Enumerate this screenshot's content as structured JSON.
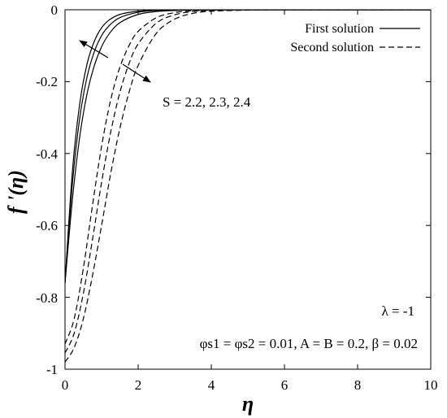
{
  "chart_data": {
    "type": "line",
    "xlabel": "η",
    "ylabel": "f '(η)",
    "xlim": [
      0,
      10
    ],
    "ylim": [
      -1,
      0
    ],
    "x_ticks": [
      "0",
      "2",
      "4",
      "6",
      "8",
      "10"
    ],
    "y_ticks": [
      "0",
      "-0.2",
      "-0.4",
      "-0.6",
      "-0.8",
      "-1"
    ],
    "grid": false,
    "legend_position": "top-right",
    "legend": [
      {
        "label": "First solution",
        "style": "solid"
      },
      {
        "label": "Second solution",
        "style": "dashed"
      }
    ],
    "annotations": {
      "s_label": "S = 2.2, 2.3, 2.4",
      "lambda_label": "λ = -1",
      "params_label": "φs1 = φs2 = 0.01, A = B = 0.2, β = 0.02"
    },
    "series": [
      {
        "group": "First solution",
        "S": 2.2,
        "style": "solid",
        "x": [
          0,
          0.2,
          0.4,
          0.6,
          0.8,
          1.0,
          1.2,
          1.5,
          2.0,
          2.5,
          3.0,
          4.0,
          6.0,
          10.0
        ],
        "y": [
          -0.76,
          -0.452,
          -0.263,
          -0.152,
          -0.088,
          -0.05,
          -0.029,
          -0.013,
          -0.004,
          -0.001,
          0.0,
          0.0,
          0.0,
          0.0
        ]
      },
      {
        "group": "First solution",
        "S": 2.3,
        "style": "solid",
        "x": [
          0,
          0.2,
          0.4,
          0.6,
          0.8,
          1.0,
          1.2,
          1.5,
          2.0,
          2.5,
          3.0,
          4.0,
          6.0,
          10.0
        ],
        "y": [
          -0.76,
          -0.486,
          -0.303,
          -0.188,
          -0.117,
          -0.072,
          -0.045,
          -0.022,
          -0.007,
          -0.002,
          -0.001,
          0.0,
          0.0,
          0.0
        ]
      },
      {
        "group": "First solution",
        "S": 2.4,
        "style": "solid",
        "x": [
          0,
          0.2,
          0.4,
          0.6,
          0.8,
          1.0,
          1.2,
          1.5,
          2.0,
          2.5,
          3.0,
          4.0,
          6.0,
          10.0
        ],
        "y": [
          -0.76,
          -0.53,
          -0.355,
          -0.235,
          -0.156,
          -0.103,
          -0.068,
          -0.036,
          -0.013,
          -0.005,
          -0.002,
          0.0,
          0.0,
          0.0
        ]
      },
      {
        "group": "Second solution",
        "S": 2.2,
        "style": "dashed",
        "x": [
          0,
          0.25,
          0.5,
          0.75,
          1.0,
          1.25,
          1.5,
          1.75,
          2.0,
          2.5,
          3.0,
          3.5,
          4.0,
          5.0,
          6.0,
          10.0
        ],
        "y": [
          -0.93,
          -0.86,
          -0.72,
          -0.545,
          -0.38,
          -0.25,
          -0.16,
          -0.1,
          -0.06,
          -0.022,
          -0.008,
          -0.003,
          -0.001,
          0.0,
          0.0,
          0.0
        ]
      },
      {
        "group": "Second solution",
        "S": 2.3,
        "style": "dashed",
        "x": [
          0,
          0.25,
          0.5,
          0.75,
          1.0,
          1.25,
          1.5,
          1.75,
          2.0,
          2.5,
          3.0,
          3.5,
          4.0,
          5.0,
          6.0,
          10.0
        ],
        "y": [
          -0.955,
          -0.9,
          -0.79,
          -0.64,
          -0.48,
          -0.34,
          -0.23,
          -0.15,
          -0.095,
          -0.037,
          -0.014,
          -0.005,
          -0.002,
          0.0,
          0.0,
          0.0
        ]
      },
      {
        "group": "Second solution",
        "S": 2.4,
        "style": "dashed",
        "x": [
          0,
          0.25,
          0.5,
          0.75,
          1.0,
          1.25,
          1.5,
          1.75,
          2.0,
          2.5,
          3.0,
          3.5,
          4.0,
          5.0,
          6.0,
          10.0
        ],
        "y": [
          -0.98,
          -0.94,
          -0.86,
          -0.74,
          -0.6,
          -0.455,
          -0.33,
          -0.23,
          -0.155,
          -0.065,
          -0.026,
          -0.01,
          -0.004,
          -0.001,
          0.0,
          0.0
        ]
      }
    ]
  }
}
